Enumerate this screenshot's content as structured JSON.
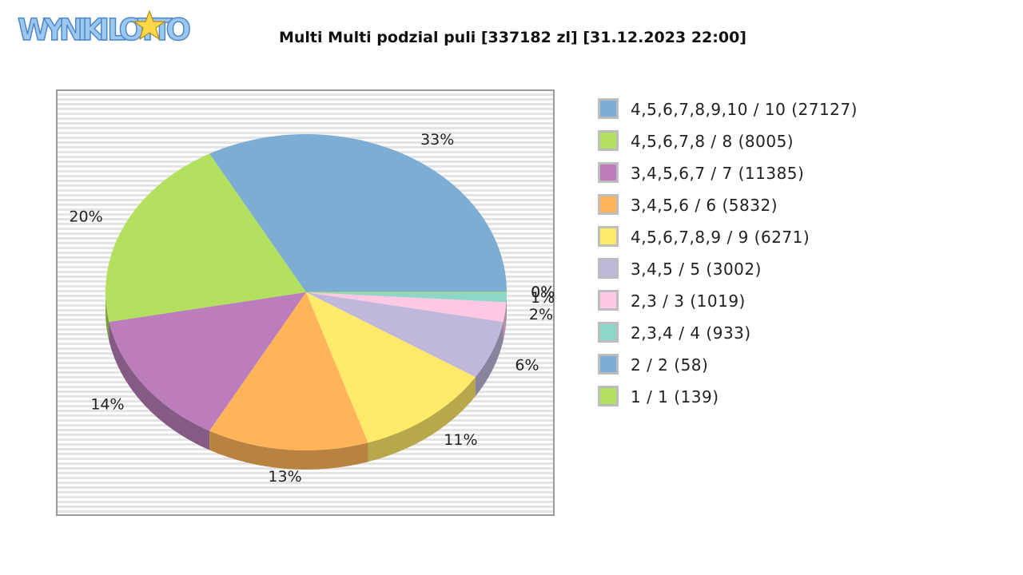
{
  "logo": {
    "text": "WYNIKI LOTTO"
  },
  "chart_data": {
    "type": "pie",
    "title": "Multi Multi podzial puli [337182 zl] [31.12.2023 22:00]",
    "slices": [
      {
        "name": "4,5,6,7,8,9,10 / 10 (27127)",
        "value": 33,
        "label": "33%",
        "color": "#7eadd4",
        "dark": "#567a96"
      },
      {
        "name": "4,5,6,7,8 / 8 (8005)",
        "value": 20,
        "label": "20%",
        "color": "#b3e05f",
        "dark": "#7c9c40"
      },
      {
        "name": "3,4,5,6,7 / 7 (11385)",
        "value": 14,
        "label": "14%",
        "color": "#bb7dbb",
        "dark": "#855a85"
      },
      {
        "name": "3,4,5,6 / 6 (5832)",
        "value": 13,
        "label": "13%",
        "color": "#ffb45a",
        "dark": "#b88240"
      },
      {
        "name": "4,5,6,7,8,9 / 9 (6271)",
        "value": 11,
        "label": "11%",
        "color": "#ffea6a",
        "dark": "#b8a84c"
      },
      {
        "name": "3,4,5 / 5 (3002)",
        "value": 6,
        "label": "6%",
        "color": "#bfb8da",
        "dark": "#89849d"
      },
      {
        "name": "2,3 / 3 (1019)",
        "value": 2,
        "label": "2%",
        "color": "#ffc8e4",
        "dark": "#b890a4"
      },
      {
        "name": "2,3,4 / 4 (933)",
        "value": 1,
        "label": "1%",
        "color": "#8ed6c8",
        "dark": "#669a90"
      },
      {
        "name": "2 / 2 (58)",
        "value": 0,
        "label": "0%",
        "color": "#7eadd4",
        "dark": "#567a96"
      },
      {
        "name": "1 / 1 (139)",
        "value": 0,
        "label": "0%",
        "color": "#b3e05f",
        "dark": "#7c9c40"
      }
    ]
  }
}
